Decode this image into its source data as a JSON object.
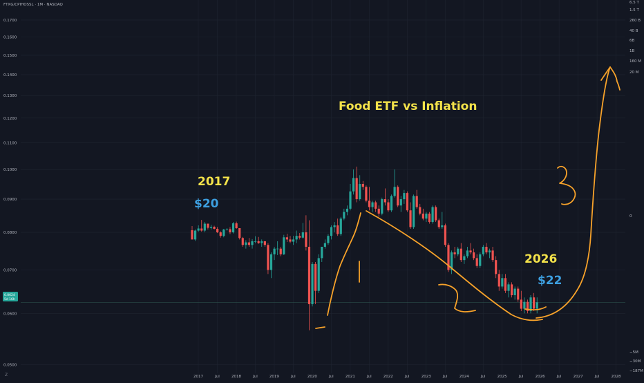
{
  "header": {
    "symbol_line": "FTXG/CPIHOSSL · 1M · NASDAQ"
  },
  "price_tag": {
    "value": "0.0624",
    "sub": "5d 16h"
  },
  "bottom_left_label": "Z",
  "annotations": {
    "title": "Food ETF vs Inflation",
    "year_start": "2017",
    "price_start": "$20",
    "year_end": "2026",
    "price_end": "$22"
  },
  "colors": {
    "background": "#131722",
    "grid": "#1f2430",
    "up": "#26a69a",
    "down": "#ef5350",
    "drawing": "#f7a22a",
    "title_yellow": "#f3e24a",
    "price_blue": "#3d9fe0",
    "axis_text": "#b2b5be"
  },
  "chart_data": {
    "type": "candlestick",
    "title": "Food ETF vs Inflation",
    "y_scale": "log",
    "ylim": [
      0.0485,
      0.1825
    ],
    "y_ticks": [
      "0.0500",
      "0.0600",
      "0.0700",
      "0.0800",
      "0.0900",
      "0.1000",
      "0.1100",
      "0.1200",
      "0.1300",
      "0.1400",
      "0.1500",
      "0.1600",
      "0.1700"
    ],
    "x_ticks": [
      "2017",
      "Jul",
      "2018",
      "Jul",
      "2019",
      "Jul",
      "2020",
      "Jul",
      "2021",
      "Jul",
      "2022",
      "Jul",
      "2023",
      "Jul",
      "2024",
      "Jul",
      "2025",
      "Jul",
      "2026",
      "Jul",
      "2027",
      "Jul",
      "2028"
    ],
    "secondary_axis_ticks": [
      "6.5 T",
      "1.5 T",
      "260 B",
      "40 B",
      "6B",
      "1B",
      "160 M",
      "20 M",
      "0",
      "−5M",
      "−30M",
      "−187M"
    ],
    "last_value": 0.0624,
    "candles_ohlc": [
      [
        0.0806,
        0.0818,
        0.078,
        0.078
      ],
      [
        0.078,
        0.0808,
        0.0776,
        0.0805
      ],
      [
        0.0805,
        0.082,
        0.0802,
        0.0811
      ],
      [
        0.0811,
        0.0836,
        0.0802,
        0.0805
      ],
      [
        0.0805,
        0.083,
        0.08,
        0.0825
      ],
      [
        0.0825,
        0.0825,
        0.0808,
        0.0813
      ],
      [
        0.0813,
        0.0822,
        0.0808,
        0.0816
      ],
      [
        0.0816,
        0.0819,
        0.0808,
        0.081
      ],
      [
        0.081,
        0.0815,
        0.0798,
        0.08
      ],
      [
        0.08,
        0.0803,
        0.0785,
        0.079
      ],
      [
        0.079,
        0.081,
        0.0786,
        0.0808
      ],
      [
        0.0808,
        0.0812,
        0.0805,
        0.0809
      ],
      [
        0.0809,
        0.0815,
        0.0795,
        0.08
      ],
      [
        0.08,
        0.083,
        0.0797,
        0.0826
      ],
      [
        0.0826,
        0.0831,
        0.081,
        0.0812
      ],
      [
        0.0812,
        0.0812,
        0.078,
        0.0784
      ],
      [
        0.0784,
        0.0787,
        0.076,
        0.0765
      ],
      [
        0.0765,
        0.0778,
        0.0755,
        0.0772
      ],
      [
        0.0772,
        0.0784,
        0.076,
        0.0765
      ],
      [
        0.0765,
        0.0781,
        0.0755,
        0.0775
      ],
      [
        0.0775,
        0.0789,
        0.077,
        0.0775
      ],
      [
        0.0775,
        0.0787,
        0.0768,
        0.077
      ],
      [
        0.077,
        0.078,
        0.076,
        0.0775
      ],
      [
        0.0775,
        0.0776,
        0.076,
        0.0765
      ],
      [
        0.0765,
        0.077,
        0.069,
        0.07
      ],
      [
        0.07,
        0.0745,
        0.068,
        0.074
      ],
      [
        0.074,
        0.076,
        0.0725,
        0.0755
      ],
      [
        0.0755,
        0.0775,
        0.0738,
        0.0755
      ],
      [
        0.0755,
        0.076,
        0.0735,
        0.074
      ],
      [
        0.074,
        0.0793,
        0.0738,
        0.0786
      ],
      [
        0.0786,
        0.0796,
        0.0773,
        0.078
      ],
      [
        0.078,
        0.079,
        0.077,
        0.0774
      ],
      [
        0.0774,
        0.079,
        0.0765,
        0.078
      ],
      [
        0.078,
        0.0805,
        0.077,
        0.079
      ],
      [
        0.079,
        0.0798,
        0.078,
        0.0785
      ],
      [
        0.0785,
        0.0827,
        0.0782,
        0.08
      ],
      [
        0.08,
        0.085,
        0.075,
        0.076
      ],
      [
        0.076,
        0.0835,
        0.0565,
        0.062
      ],
      [
        0.062,
        0.072,
        0.0615,
        0.0715
      ],
      [
        0.0715,
        0.072,
        0.062,
        0.065
      ],
      [
        0.065,
        0.074,
        0.0645,
        0.073
      ],
      [
        0.073,
        0.076,
        0.072,
        0.076
      ],
      [
        0.076,
        0.078,
        0.0755,
        0.077
      ],
      [
        0.077,
        0.0795,
        0.0765,
        0.079
      ],
      [
        0.079,
        0.082,
        0.078,
        0.0815
      ],
      [
        0.0815,
        0.083,
        0.08,
        0.082
      ],
      [
        0.082,
        0.084,
        0.079,
        0.0795
      ],
      [
        0.0795,
        0.0845,
        0.079,
        0.084
      ],
      [
        0.084,
        0.087,
        0.0835,
        0.086
      ],
      [
        0.086,
        0.088,
        0.085,
        0.087
      ],
      [
        0.087,
        0.095,
        0.0865,
        0.0925
      ],
      [
        0.0925,
        0.1,
        0.0915,
        0.097
      ],
      [
        0.097,
        0.101,
        0.089,
        0.09
      ],
      [
        0.09,
        0.098,
        0.0895,
        0.095
      ],
      [
        0.095,
        0.096,
        0.093,
        0.094
      ],
      [
        0.094,
        0.0945,
        0.089,
        0.0895
      ],
      [
        0.0895,
        0.094,
        0.0865,
        0.0875
      ],
      [
        0.0875,
        0.0895,
        0.086,
        0.089
      ],
      [
        0.089,
        0.0895,
        0.086,
        0.087
      ],
      [
        0.087,
        0.088,
        0.0845,
        0.0855
      ],
      [
        0.0855,
        0.0905,
        0.085,
        0.09
      ],
      [
        0.09,
        0.0935,
        0.088,
        0.089
      ],
      [
        0.089,
        0.09,
        0.086,
        0.0865
      ],
      [
        0.0865,
        0.0915,
        0.086,
        0.091
      ],
      [
        0.091,
        0.1,
        0.0905,
        0.094
      ],
      [
        0.094,
        0.0945,
        0.0875,
        0.088
      ],
      [
        0.088,
        0.091,
        0.086,
        0.09
      ],
      [
        0.09,
        0.093,
        0.0885,
        0.092
      ],
      [
        0.092,
        0.0925,
        0.086,
        0.0865
      ],
      [
        0.0865,
        0.089,
        0.081,
        0.0815
      ],
      [
        0.0815,
        0.0915,
        0.081,
        0.091
      ],
      [
        0.091,
        0.093,
        0.087,
        0.0875
      ],
      [
        0.0875,
        0.0885,
        0.085,
        0.0855
      ],
      [
        0.0855,
        0.087,
        0.0835,
        0.084
      ],
      [
        0.084,
        0.086,
        0.083,
        0.0855
      ],
      [
        0.0855,
        0.086,
        0.0825,
        0.083
      ],
      [
        0.083,
        0.088,
        0.0825,
        0.0875
      ],
      [
        0.0875,
        0.088,
        0.083,
        0.0835
      ],
      [
        0.0835,
        0.084,
        0.081,
        0.0815
      ],
      [
        0.0815,
        0.086,
        0.081,
        0.082
      ],
      [
        0.082,
        0.0825,
        0.076,
        0.0765
      ],
      [
        0.0765,
        0.077,
        0.0695,
        0.07
      ],
      [
        0.07,
        0.075,
        0.069,
        0.0745
      ],
      [
        0.0745,
        0.076,
        0.073,
        0.074
      ],
      [
        0.074,
        0.076,
        0.0735,
        0.0755
      ],
      [
        0.0755,
        0.077,
        0.072,
        0.0725
      ],
      [
        0.0725,
        0.074,
        0.0715,
        0.0735
      ],
      [
        0.0735,
        0.076,
        0.073,
        0.075
      ],
      [
        0.075,
        0.077,
        0.074,
        0.0745
      ],
      [
        0.0745,
        0.0755,
        0.0725,
        0.073
      ],
      [
        0.073,
        0.074,
        0.0705,
        0.071
      ],
      [
        0.071,
        0.0745,
        0.0705,
        0.074
      ],
      [
        0.074,
        0.0765,
        0.0735,
        0.076
      ],
      [
        0.076,
        0.077,
        0.074,
        0.0745
      ],
      [
        0.0745,
        0.0755,
        0.073,
        0.075
      ],
      [
        0.075,
        0.076,
        0.072,
        0.0725
      ],
      [
        0.0725,
        0.0735,
        0.068,
        0.069
      ],
      [
        0.069,
        0.07,
        0.065,
        0.066
      ],
      [
        0.066,
        0.069,
        0.0655,
        0.068
      ],
      [
        0.068,
        0.069,
        0.0645,
        0.065
      ],
      [
        0.065,
        0.067,
        0.0635,
        0.0665
      ],
      [
        0.0665,
        0.067,
        0.0635,
        0.064
      ],
      [
        0.064,
        0.066,
        0.063,
        0.0655
      ],
      [
        0.0655,
        0.066,
        0.0625,
        0.063
      ],
      [
        0.063,
        0.065,
        0.0605,
        0.061
      ],
      [
        0.061,
        0.0635,
        0.06,
        0.0625
      ],
      [
        0.0625,
        0.063,
        0.06,
        0.0605
      ],
      [
        0.0605,
        0.064,
        0.06,
        0.0635
      ],
      [
        0.0635,
        0.0645,
        0.0605,
        0.061
      ],
      [
        0.061,
        0.0635,
        0.06,
        0.0624
      ]
    ]
  }
}
